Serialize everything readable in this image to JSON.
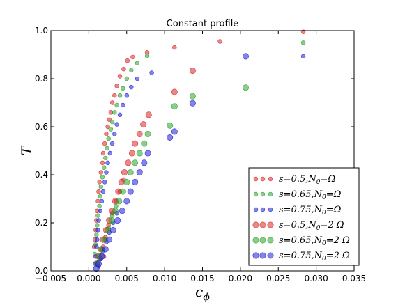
{
  "chart_data": {
    "type": "scatter",
    "title": "Constant profile",
    "xlabel": "c",
    "xlabel_sub": "ϕ",
    "ylabel": "T",
    "xlim": [
      -0.005,
      0.035
    ],
    "ylim": [
      0.0,
      1.0
    ],
    "x_ticks": [
      -0.005,
      0.0,
      0.005,
      0.01,
      0.015,
      0.02,
      0.025,
      0.03,
      0.035
    ],
    "x_tick_labels": [
      "−0.005",
      "0.000",
      "0.005",
      "0.010",
      "0.015",
      "0.020",
      "0.025",
      "0.030",
      "0.035"
    ],
    "y_ticks": [
      0.0,
      0.2,
      0.4,
      0.6,
      0.8,
      1.0
    ],
    "y_tick_labels": [
      "0.0",
      "0.2",
      "0.4",
      "0.6",
      "0.8",
      "1.0"
    ],
    "grid": false,
    "legend_position": "lower-right",
    "series": [
      {
        "name": "s = 0.5, N₀ = Ω",
        "legend_parts": [
          "s",
          "=0.5,",
          "N",
          "0",
          "=Ω"
        ],
        "color": "#d62728",
        "marker_size": "small",
        "points": [
          [
            0.0283,
            0.995
          ],
          [
            0.0173,
            0.955
          ],
          [
            0.0113,
            0.93
          ],
          [
            0.0077,
            0.91
          ],
          [
            0.0058,
            0.89
          ],
          [
            0.0051,
            0.875
          ],
          [
            0.0046,
            0.84
          ],
          [
            0.0041,
            0.81
          ],
          [
            0.0037,
            0.77
          ],
          [
            0.0034,
            0.73
          ],
          [
            0.0031,
            0.7
          ],
          [
            0.0029,
            0.66
          ],
          [
            0.0027,
            0.63
          ],
          [
            0.0025,
            0.6
          ],
          [
            0.0023,
            0.57
          ],
          [
            0.0021,
            0.53
          ],
          [
            0.0019,
            0.49
          ],
          [
            0.0018,
            0.45
          ],
          [
            0.0016,
            0.41
          ],
          [
            0.0014,
            0.37
          ],
          [
            0.0013,
            0.33
          ],
          [
            0.0012,
            0.29
          ],
          [
            0.0011,
            0.25
          ],
          [
            0.001,
            0.21
          ],
          [
            0.0009,
            0.17
          ],
          [
            0.0008,
            0.13
          ],
          [
            0.0007,
            0.1
          ],
          [
            0.002,
            0.06
          ],
          [
            0.0019,
            0.1
          ],
          [
            0.0022,
            0.14
          ],
          [
            0.0026,
            0.19
          ],
          [
            0.0031,
            0.24
          ],
          [
            0.0036,
            0.29
          ],
          [
            0.0041,
            0.33
          ],
          [
            0.0046,
            0.38
          ]
        ]
      },
      {
        "name": "s = 0.65, N₀ = Ω",
        "legend_parts": [
          "s",
          "=0.65,",
          "N",
          "0",
          "=Ω"
        ],
        "color": "#2ca02c",
        "marker_size": "small",
        "points": [
          [
            0.0283,
            0.95
          ],
          [
            0.0077,
            0.895
          ],
          [
            0.0064,
            0.865
          ],
          [
            0.0056,
            0.835
          ],
          [
            0.005,
            0.8
          ],
          [
            0.0045,
            0.76
          ],
          [
            0.0041,
            0.73
          ],
          [
            0.0037,
            0.69
          ],
          [
            0.0034,
            0.66
          ],
          [
            0.0031,
            0.62
          ],
          [
            0.0029,
            0.59
          ],
          [
            0.0026,
            0.55
          ],
          [
            0.0024,
            0.51
          ],
          [
            0.0022,
            0.47
          ],
          [
            0.002,
            0.43
          ],
          [
            0.0018,
            0.39
          ],
          [
            0.0016,
            0.35
          ],
          [
            0.0015,
            0.31
          ],
          [
            0.0014,
            0.27
          ],
          [
            0.0012,
            0.23
          ],
          [
            0.0011,
            0.19
          ],
          [
            0.001,
            0.15
          ],
          [
            0.0009,
            0.11
          ],
          [
            0.0008,
            0.07
          ],
          [
            0.0015,
            0.05
          ],
          [
            0.0018,
            0.09
          ],
          [
            0.0022,
            0.13
          ],
          [
            0.0026,
            0.18
          ],
          [
            0.0031,
            0.23
          ],
          [
            0.0036,
            0.27
          ]
        ]
      },
      {
        "name": "s = 0.75, N₀ = Ω",
        "legend_parts": [
          "s",
          "=0.75,",
          "N",
          "0",
          "=Ω"
        ],
        "color": "#1f1fd6",
        "marker_size": "small",
        "points": [
          [
            0.0283,
            0.893
          ],
          [
            0.0083,
            0.825
          ],
          [
            0.0064,
            0.8
          ],
          [
            0.0056,
            0.765
          ],
          [
            0.005,
            0.73
          ],
          [
            0.0045,
            0.69
          ],
          [
            0.0041,
            0.65
          ],
          [
            0.0037,
            0.61
          ],
          [
            0.0034,
            0.57
          ],
          [
            0.0031,
            0.53
          ],
          [
            0.0028,
            0.49
          ],
          [
            0.0025,
            0.45
          ],
          [
            0.0023,
            0.41
          ],
          [
            0.0021,
            0.37
          ],
          [
            0.0019,
            0.33
          ],
          [
            0.0017,
            0.29
          ],
          [
            0.0015,
            0.25
          ],
          [
            0.0013,
            0.21
          ],
          [
            0.0012,
            0.17
          ],
          [
            0.0011,
            0.13
          ],
          [
            0.001,
            0.1
          ],
          [
            0.0009,
            0.06
          ],
          [
            0.0008,
            0.03
          ],
          [
            0.0013,
            0.02
          ],
          [
            0.0016,
            0.05
          ],
          [
            0.0019,
            0.08
          ],
          [
            0.0023,
            0.12
          ],
          [
            0.0027,
            0.16
          ],
          [
            0.0032,
            0.2
          ],
          [
            0.0037,
            0.24
          ]
        ]
      },
      {
        "name": "s = 0.5, N₀ = 2 Ω",
        "legend_parts": [
          "s",
          "=0.5,",
          "N",
          "0",
          "=2 Ω"
        ],
        "color": "#d62728",
        "marker_size": "large",
        "points": [
          [
            0.0137,
            0.833
          ],
          [
            0.0113,
            0.745
          ],
          [
            0.0079,
            0.65
          ],
          [
            0.0072,
            0.61
          ],
          [
            0.0067,
            0.57
          ],
          [
            0.0061,
            0.53
          ],
          [
            0.0057,
            0.49
          ],
          [
            0.0052,
            0.45
          ],
          [
            0.0047,
            0.41
          ],
          [
            0.0043,
            0.37
          ],
          [
            0.0039,
            0.33
          ],
          [
            0.0035,
            0.29
          ],
          [
            0.0031,
            0.25
          ],
          [
            0.0027,
            0.21
          ],
          [
            0.0023,
            0.17
          ],
          [
            0.0019,
            0.13
          ],
          [
            0.0016,
            0.09
          ],
          [
            0.0013,
            0.06
          ],
          [
            0.0011,
            0.03
          ]
        ]
      },
      {
        "name": "s = 0.65, N₀ = 2 Ω",
        "legend_parts": [
          "s",
          "=0.65,",
          "N",
          "0",
          "=2 Ω"
        ],
        "color": "#2ca02c",
        "marker_size": "large",
        "points": [
          [
            0.0207,
            0.763
          ],
          [
            0.0137,
            0.727
          ],
          [
            0.0113,
            0.685
          ],
          [
            0.0107,
            0.605
          ],
          [
            0.0078,
            0.57
          ],
          [
            0.0073,
            0.53
          ],
          [
            0.0067,
            0.49
          ],
          [
            0.0061,
            0.45
          ],
          [
            0.0055,
            0.41
          ],
          [
            0.005,
            0.37
          ],
          [
            0.0045,
            0.33
          ],
          [
            0.004,
            0.29
          ],
          [
            0.0035,
            0.25
          ],
          [
            0.003,
            0.21
          ],
          [
            0.0025,
            0.17
          ],
          [
            0.0021,
            0.13
          ],
          [
            0.0017,
            0.09
          ],
          [
            0.0014,
            0.06
          ],
          [
            0.0011,
            0.03
          ]
        ]
      },
      {
        "name": "s = 0.75, N₀ = 2 Ω",
        "legend_parts": [
          "s",
          "=0.75,",
          "N",
          "0",
          "=2 Ω"
        ],
        "color": "#1f1fd6",
        "marker_size": "large",
        "points": [
          [
            0.0207,
            0.893
          ],
          [
            0.0137,
            0.698
          ],
          [
            0.0113,
            0.58
          ],
          [
            0.0107,
            0.555
          ],
          [
            0.0078,
            0.49
          ],
          [
            0.0073,
            0.45
          ],
          [
            0.0067,
            0.41
          ],
          [
            0.0061,
            0.37
          ],
          [
            0.0055,
            0.33
          ],
          [
            0.005,
            0.29
          ],
          [
            0.0044,
            0.25
          ],
          [
            0.0038,
            0.21
          ],
          [
            0.0032,
            0.17
          ],
          [
            0.0027,
            0.13
          ],
          [
            0.0022,
            0.09
          ],
          [
            0.0017,
            0.06
          ],
          [
            0.0013,
            0.03
          ],
          [
            0.001,
            0.01
          ]
        ]
      }
    ]
  }
}
